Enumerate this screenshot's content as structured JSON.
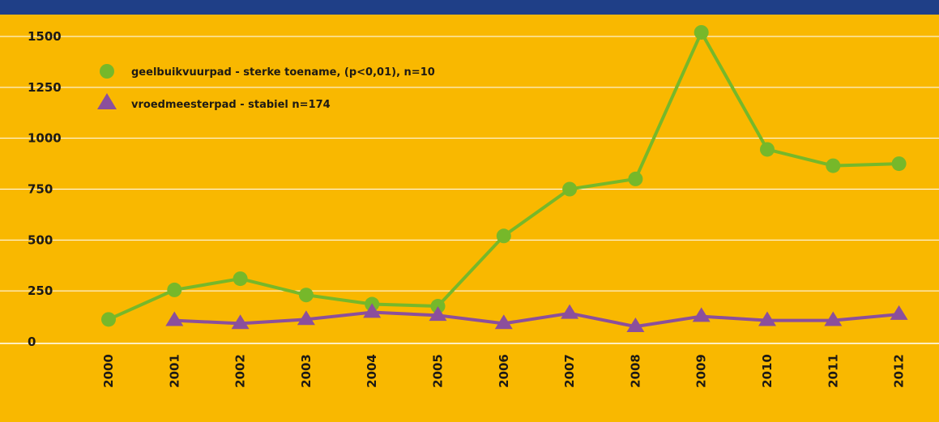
{
  "chart_data": {
    "type": "line",
    "x": [
      "2000",
      "2001",
      "2002",
      "2003",
      "2004",
      "2005",
      "2006",
      "2007",
      "2008",
      "2009",
      "2010",
      "2011",
      "2012"
    ],
    "ylim": [
      0,
      1500
    ],
    "yticks": [
      0,
      250,
      500,
      750,
      1000,
      1250,
      1500
    ],
    "grid": true,
    "legend_position": "top-left",
    "colors": {
      "background": "#f9b800",
      "top_bar": "#1f3f87",
      "grid": "#ffffff"
    },
    "series": [
      {
        "name": "geelbuikvuurpad - sterke toename, (p<0,01), n=10",
        "marker": "circle",
        "color": "#76b82a",
        "values": [
          110,
          255,
          310,
          230,
          185,
          175,
          520,
          750,
          800,
          1520,
          945,
          865,
          875
        ]
      },
      {
        "name": "vroedmeesterpad - stabiel n=174",
        "marker": "triangle",
        "color": "#8b4f9c",
        "values": [
          null,
          105,
          90,
          110,
          145,
          130,
          90,
          140,
          75,
          125,
          105,
          105,
          135
        ]
      }
    ]
  }
}
